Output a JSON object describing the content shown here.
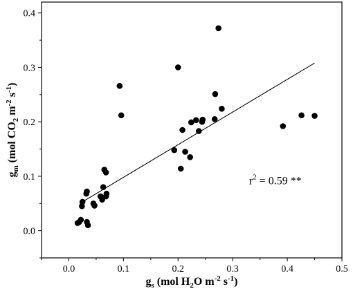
{
  "chart_data": {
    "type": "scatter",
    "title": "",
    "xlabel": {
      "parts": [
        "g",
        "s",
        " (mol H",
        "2",
        "O m",
        "-2",
        " s",
        "-1",
        ")"
      ]
    },
    "ylabel": {
      "parts": [
        "g",
        "m",
        " (mol CO",
        "2",
        " m",
        "-2",
        " s",
        "-1",
        ")"
      ]
    },
    "xlim": [
      -0.05,
      0.5
    ],
    "ylim": [
      -0.05,
      0.42
    ],
    "xticks": [
      0.0,
      0.1,
      0.2,
      0.3,
      0.4,
      0.5
    ],
    "xtick_labels": [
      "0.0",
      "0.1",
      "0.2",
      "0.3",
      "0.4",
      "0.5"
    ],
    "yticks": [
      0.0,
      0.1,
      0.2,
      0.3,
      0.4
    ],
    "ytick_labels": [
      "0.0",
      "0.1",
      "0.2",
      "0.3",
      "0.4"
    ],
    "grid": false,
    "points": [
      {
        "x": 0.016,
        "y": 0.014
      },
      {
        "x": 0.019,
        "y": 0.016
      },
      {
        "x": 0.022,
        "y": 0.02
      },
      {
        "x": 0.024,
        "y": 0.045
      },
      {
        "x": 0.025,
        "y": 0.053
      },
      {
        "x": 0.032,
        "y": 0.068
      },
      {
        "x": 0.033,
        "y": 0.072
      },
      {
        "x": 0.033,
        "y": 0.016
      },
      {
        "x": 0.035,
        "y": 0.01
      },
      {
        "x": 0.045,
        "y": 0.05
      },
      {
        "x": 0.047,
        "y": 0.046
      },
      {
        "x": 0.058,
        "y": 0.063
      },
      {
        "x": 0.061,
        "y": 0.057
      },
      {
        "x": 0.063,
        "y": 0.08
      },
      {
        "x": 0.065,
        "y": 0.112
      },
      {
        "x": 0.068,
        "y": 0.107
      },
      {
        "x": 0.068,
        "y": 0.063
      },
      {
        "x": 0.069,
        "y": 0.068
      },
      {
        "x": 0.093,
        "y": 0.266
      },
      {
        "x": 0.096,
        "y": 0.212
      },
      {
        "x": 0.193,
        "y": 0.148
      },
      {
        "x": 0.2,
        "y": 0.3
      },
      {
        "x": 0.205,
        "y": 0.114
      },
      {
        "x": 0.208,
        "y": 0.185
      },
      {
        "x": 0.213,
        "y": 0.145
      },
      {
        "x": 0.222,
        "y": 0.135
      },
      {
        "x": 0.224,
        "y": 0.199
      },
      {
        "x": 0.233,
        "y": 0.203
      },
      {
        "x": 0.238,
        "y": 0.183
      },
      {
        "x": 0.244,
        "y": 0.2
      },
      {
        "x": 0.245,
        "y": 0.204
      },
      {
        "x": 0.267,
        "y": 0.205
      },
      {
        "x": 0.268,
        "y": 0.251
      },
      {
        "x": 0.274,
        "y": 0.372
      },
      {
        "x": 0.28,
        "y": 0.224
      },
      {
        "x": 0.392,
        "y": 0.192
      },
      {
        "x": 0.426,
        "y": 0.212
      },
      {
        "x": 0.45,
        "y": 0.211
      }
    ],
    "fit_line": {
      "x": [
        0.02,
        0.45
      ],
      "y": [
        0.05,
        0.308
      ]
    },
    "annotation": {
      "prefix": "r",
      "sup": "2",
      "suffix": " = 0.59 **",
      "x": 0.33,
      "y": 0.085
    }
  }
}
